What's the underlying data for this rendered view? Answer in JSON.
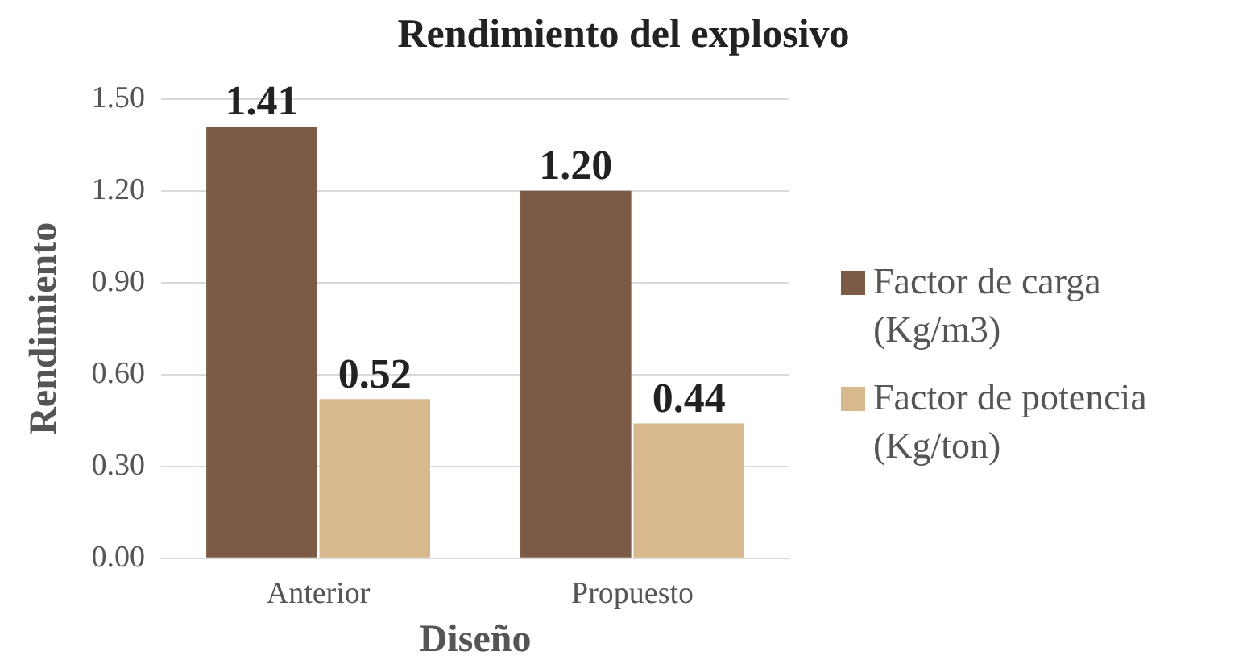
{
  "chart_data": {
    "type": "bar",
    "title": "Rendimiento del explosivo",
    "xlabel": "Diseño",
    "ylabel": "Rendimiento",
    "categories": [
      "Anterior",
      "Propuesto"
    ],
    "series": [
      {
        "name": "Factor de carga (Kg/m3)",
        "color": "#7b5b45",
        "values": [
          1.41,
          1.2
        ],
        "value_labels": [
          "1.41",
          "1.20"
        ]
      },
      {
        "name": "Factor de potencia (Kg/ton)",
        "color": "#d8b98e",
        "values": [
          0.52,
          0.44
        ],
        "value_labels": [
          "0.52",
          "0.44"
        ]
      }
    ],
    "ylim": [
      0,
      1.5
    ],
    "yticks": [
      {
        "value": 0,
        "label": "0.00"
      },
      {
        "value": 0.3,
        "label": "0.30"
      },
      {
        "value": 0.6,
        "label": "0.60"
      },
      {
        "value": 0.9,
        "label": "0.90"
      },
      {
        "value": 1.2,
        "label": "1.20"
      },
      {
        "value": 1.5,
        "label": "1.50"
      }
    ],
    "grid": "y",
    "legend": "right"
  }
}
